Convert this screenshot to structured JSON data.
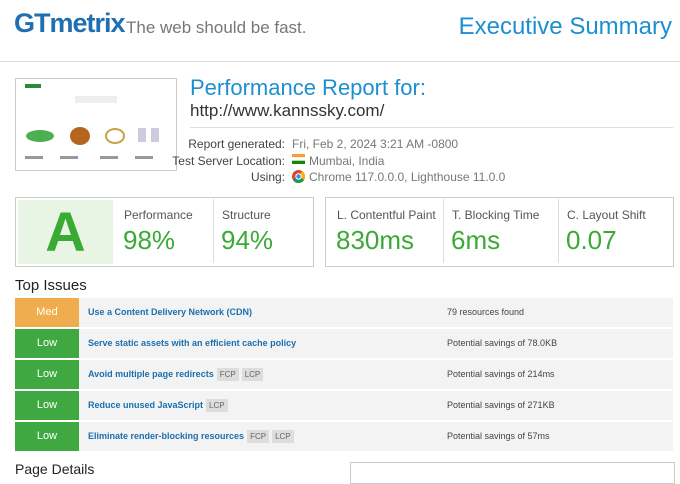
{
  "header": {
    "logo": "GTmetrix",
    "tagline": "The web should be fast.",
    "section": "Executive Summary"
  },
  "report": {
    "heading": "Performance Report for:",
    "url": "http://www.kannssky.com/",
    "details": [
      {
        "label": "Report generated:",
        "value": "Fri, Feb 2, 2024 3:21 AM -0800"
      },
      {
        "label": "Test Server Location:",
        "value": "Mumbai, India"
      },
      {
        "label": "Using:",
        "value": "Chrome 117.0.0.0, Lighthouse 11.0.0"
      }
    ]
  },
  "grade": {
    "letter": "A",
    "metrics": [
      {
        "label": "Performance",
        "value": "98%"
      },
      {
        "label": "Structure",
        "value": "94%"
      }
    ]
  },
  "vitals": [
    {
      "label": "L. Contentful Paint",
      "value": "830ms"
    },
    {
      "label": "T. Blocking Time",
      "value": "6ms"
    },
    {
      "label": "C. Layout Shift",
      "value": "0.07"
    }
  ],
  "top_issues": {
    "title": "Top Issues",
    "rows": [
      {
        "impact": "Med",
        "issue": "Use a Content Delivery Network (CDN)",
        "tags": [],
        "result": "79 resources found"
      },
      {
        "impact": "Low",
        "issue": "Serve static assets with an efficient cache policy",
        "tags": [],
        "result": "Potential savings of 78.0KB"
      },
      {
        "impact": "Low",
        "issue": "Avoid multiple page redirects",
        "tags": [
          "FCP",
          "LCP"
        ],
        "result": "Potential savings of 214ms"
      },
      {
        "impact": "Low",
        "issue": "Reduce unused JavaScript",
        "tags": [
          "LCP"
        ],
        "result": "Potential savings of 271KB"
      },
      {
        "impact": "Low",
        "issue": "Eliminate render-blocking resources",
        "tags": [
          "FCP",
          "LCP"
        ],
        "result": "Potential savings of 57ms"
      }
    ]
  },
  "page_details": {
    "title": "Page Details"
  }
}
